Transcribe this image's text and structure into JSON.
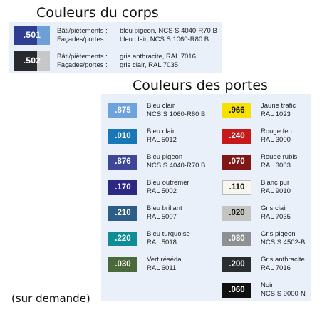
{
  "body_colors": {
    "title": "Couleurs du corps",
    "items": [
      {
        "code": ".501",
        "colors": [
          "#2e3f93",
          "#6f9fd8"
        ],
        "lines": [
          {
            "label": "Bâti/piètements :",
            "value": "bleu pigeon, NCS S 4040-R70 B"
          },
          {
            "label": "Façades/portes :",
            "value": "bleu clair, NCS S 1060-R80 B"
          }
        ]
      },
      {
        "code": ".502",
        "colors": [
          "#262a2d",
          "#c6c7c6"
        ],
        "lines": [
          {
            "label": "Bâti/piètements :",
            "value": "gris anthracite, RAL 7016"
          },
          {
            "label": "Façades/portes :",
            "value": "gris clair, RAL 7035"
          }
        ]
      }
    ]
  },
  "door_colors": {
    "title": "Couleurs des portes",
    "left": [
      {
        "code": ".875",
        "color": "#6ea2dc",
        "name": "Bleu clair",
        "ref": "NCS S 1060-R80 B"
      },
      {
        "code": ".010",
        "color": "#1777b7",
        "name": "Bleu clair",
        "ref": "RAL 5012"
      },
      {
        "code": ".876",
        "color": "#3e4797",
        "name": "Bleu pigeon",
        "ref": "NCS S 4040-R70 B"
      },
      {
        "code": ".170",
        "color": "#2c2883",
        "name": "Bleu outremer",
        "ref": "RAL 5002"
      },
      {
        "code": ".210",
        "color": "#2b5d86",
        "name": "Bleu brillant",
        "ref": "RAL 5007"
      },
      {
        "code": ".220",
        "color": "#0f8d96",
        "name": "Bleu turquoise",
        "ref": "RAL 5018"
      },
      {
        "code": ".030",
        "color": "#4b6a3b",
        "name": "Vert réséda",
        "ref": "RAL 6011"
      }
    ],
    "right": [
      {
        "code": ".966",
        "color": "#f6e100",
        "name": "Jaune trafic",
        "ref": "RAL 1023",
        "text": "dark"
      },
      {
        "code": ".240",
        "color": "#c61a1a",
        "name": "Rouge feu",
        "ref": "RAL 3000"
      },
      {
        "code": ".070",
        "color": "#7f1716",
        "name": "Rouge rubis",
        "ref": "RAL 3003"
      },
      {
        "code": ".110",
        "color": "#f7f7ef",
        "name": "Blanc pur",
        "ref": "RAL 9010",
        "text": "dark"
      },
      {
        "code": ".020",
        "color": "#c4c5c0",
        "name": "Gris clair",
        "ref": "RAL 7035",
        "text": "dark"
      },
      {
        "code": ".080",
        "color": "#8d9194",
        "name": "Gris pigeon",
        "ref": "NCS S 4502-B"
      },
      {
        "code": ".200",
        "color": "#2a2d30",
        "name": "Gris anthracite",
        "ref": "RAL 7016"
      },
      {
        "code": ".060",
        "color": "#101010",
        "name": "Noir",
        "ref": "NCS S 9000-N"
      }
    ]
  },
  "footer": "(sur demande)"
}
